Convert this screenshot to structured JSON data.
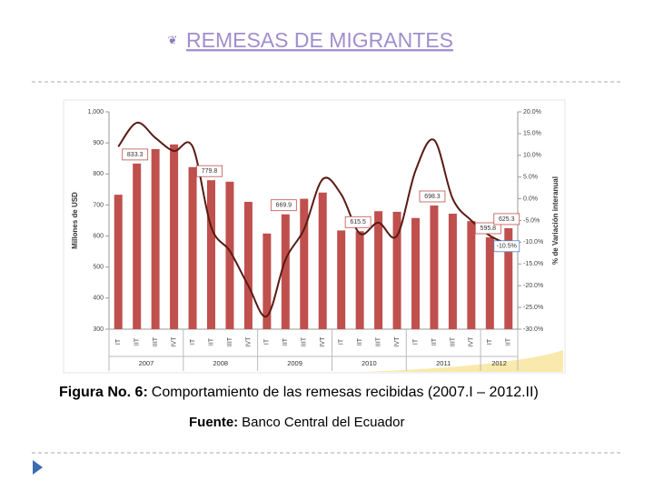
{
  "slide": {
    "title": "REMESAS DE MIGRANTES",
    "caption": {
      "bold": "Figura No. 6:",
      "text": "Comportamiento de las remesas recibidas (2007.I – 2012.II)"
    },
    "source": {
      "bold": "Fuente:",
      "text": "Banco Central del Ecuador"
    }
  },
  "chart_data": {
    "type": "combo",
    "y_label": "Millones de USD",
    "y2_label": "% de Variación interanual",
    "groups": [
      {
        "name": "2007",
        "categories": [
          "IT",
          "IIT",
          "IIIT",
          "IVT"
        ]
      },
      {
        "name": "2008",
        "categories": [
          "IT",
          "IIT",
          "IIIT",
          "IVT"
        ]
      },
      {
        "name": "2009",
        "categories": [
          "IT",
          "IIT",
          "IIIT",
          "IVT"
        ]
      },
      {
        "name": "2010",
        "categories": [
          "IT",
          "IIT",
          "IIIT",
          "IVT"
        ]
      },
      {
        "name": "2011",
        "categories": [
          "IT",
          "IIT",
          "IIIT",
          "IVT"
        ]
      },
      {
        "name": "2012",
        "categories": [
          "IT",
          "IIT"
        ]
      }
    ],
    "series": [
      {
        "type": "bar",
        "color": "#c0504d",
        "values": [
          733,
          833.3,
          880,
          895,
          822,
          779.8,
          775,
          710,
          608,
          669.9,
          720,
          740,
          618,
          615.5,
          680,
          678,
          658,
          698.3,
          672,
          648,
          595.8,
          625.3
        ],
        "value_labels": [
          null,
          "833.3",
          null,
          null,
          null,
          "779.8",
          null,
          null,
          null,
          "669.9",
          null,
          null,
          null,
          "615.5",
          null,
          null,
          null,
          "698.3",
          null,
          null,
          "595.8",
          "625.3"
        ]
      },
      {
        "type": "line",
        "axis": "y2",
        "color": "#5a1a14",
        "values": [
          12,
          17.5,
          14,
          11,
          12,
          -6.5,
          -12,
          -20,
          -27,
          -14,
          -7,
          4.5,
          1,
          -8,
          -5.5,
          -8.5,
          6.5,
          13.5,
          0,
          -5,
          -8.5,
          -10.5
        ],
        "value_labels": [
          null,
          null,
          null,
          null,
          null,
          null,
          null,
          null,
          null,
          null,
          null,
          null,
          null,
          null,
          null,
          null,
          null,
          null,
          null,
          null,
          null,
          "-10.5%"
        ]
      }
    ],
    "ylim": [
      300,
      1000
    ],
    "yticks": [
      300,
      400,
      500,
      600,
      700,
      800,
      900,
      {
        "value": 1000,
        "label": "1,000"
      }
    ],
    "y2lim": [
      -30,
      20
    ],
    "y2ticks": [
      {
        "value": -30,
        "label": "-30.0%"
      },
      {
        "value": -25,
        "label": "-25.0%"
      },
      {
        "value": -20,
        "label": "-20.0%"
      },
      {
        "value": -15,
        "label": "-15.0%"
      },
      {
        "value": -10,
        "label": "-10.0%"
      },
      {
        "value": -5,
        "label": "-5.0%"
      },
      {
        "value": 0,
        "label": "0.0%"
      },
      {
        "value": 5,
        "label": "5.0%"
      },
      {
        "value": 10,
        "label": "10.0%"
      },
      {
        "value": 15,
        "label": "15.0%"
      },
      {
        "value": 20,
        "label": "20.0%"
      }
    ]
  }
}
